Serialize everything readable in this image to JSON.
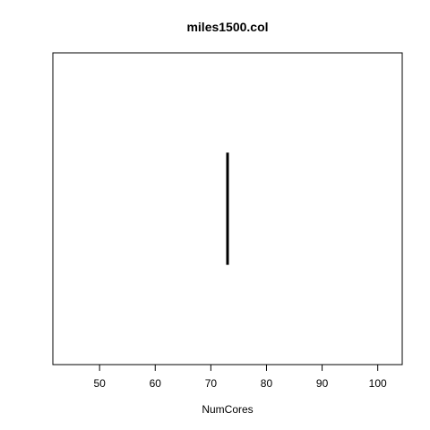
{
  "chart_data": {
    "type": "line",
    "title": "miles1500.col",
    "xlabel": "NumCores",
    "ylabel": "",
    "xlim": [
      41.6,
      104.4
    ],
    "ylim": [
      0,
      1
    ],
    "x_ticks": [
      50,
      60,
      70,
      80,
      90,
      100
    ],
    "x_tick_labels": [
      "50",
      "60",
      "70",
      "80",
      "90",
      "100"
    ],
    "y_axis_shown": false,
    "grid": false,
    "series": [
      {
        "color": "#000000",
        "points": [
          {
            "x": 73,
            "y": 0.32
          },
          {
            "x": 73,
            "y": 0.68
          }
        ]
      }
    ]
  }
}
